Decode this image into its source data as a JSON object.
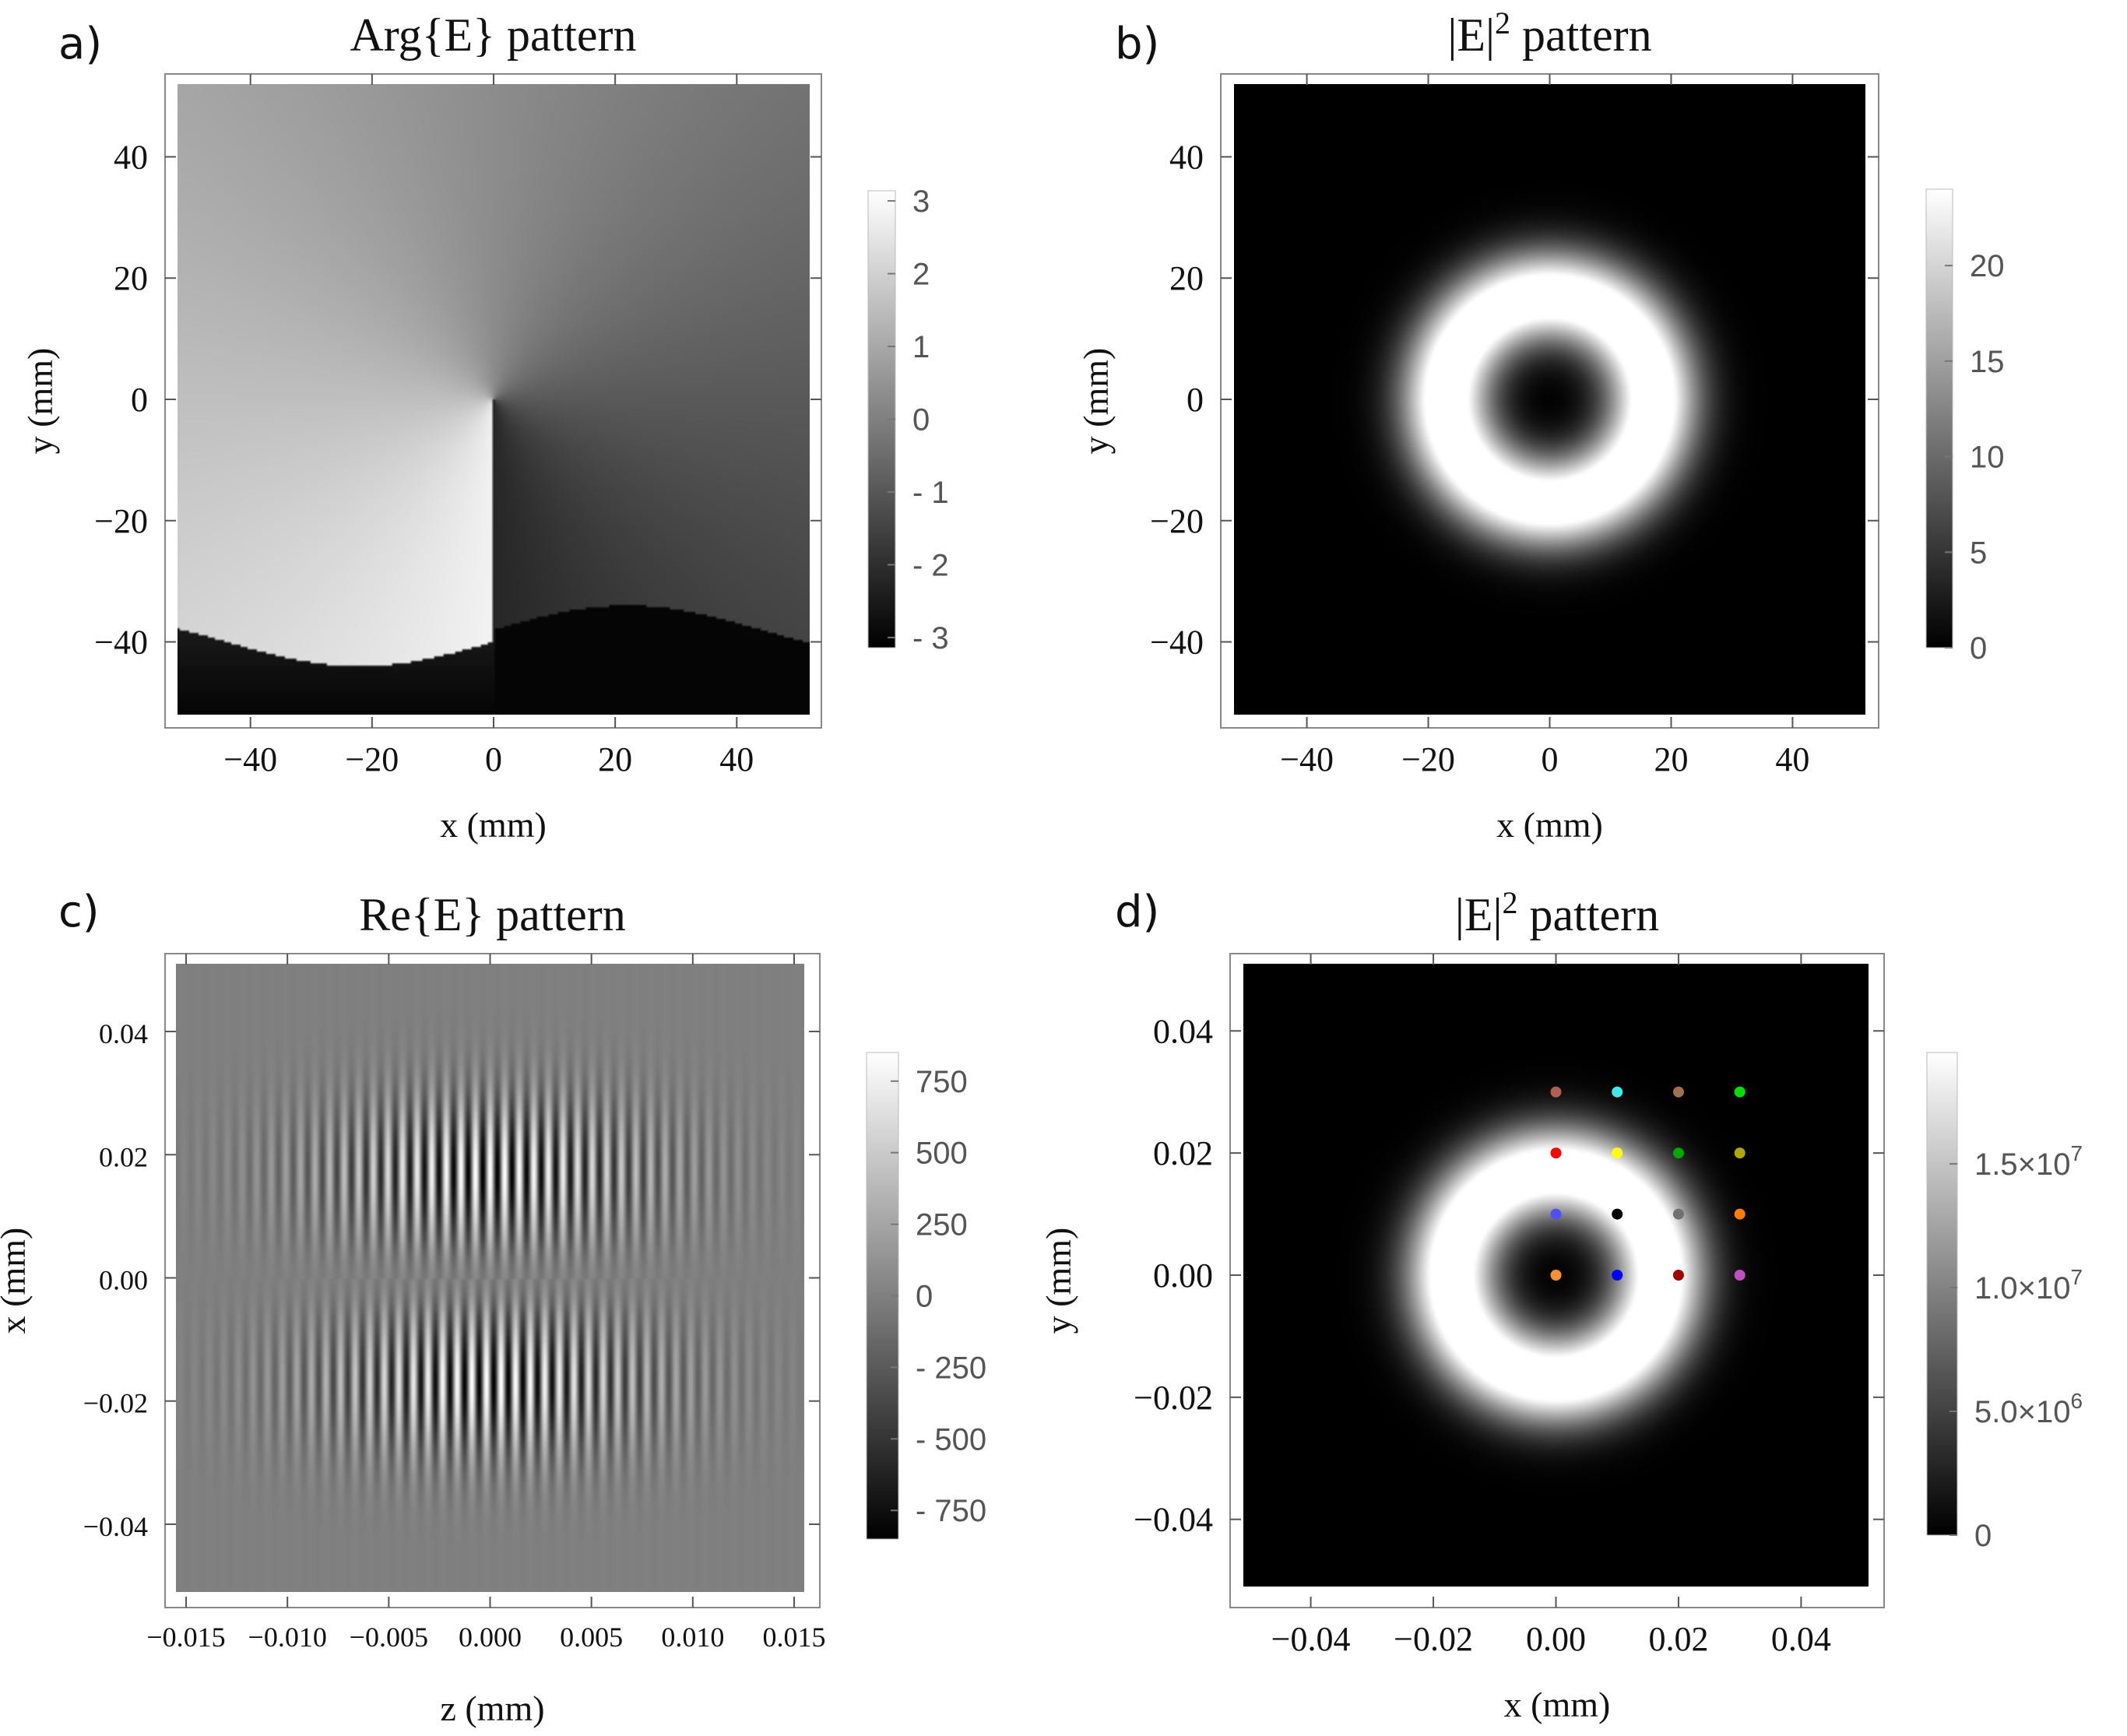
{
  "chart_data": [
    {
      "id": "a",
      "type": "heatmap",
      "panel_letter": "a)",
      "title": "Arg{E} pattern",
      "xlabel": "x (mm)",
      "ylabel": "y (mm)",
      "xlim": [
        -52,
        52
      ],
      "ylim": [
        -52,
        52
      ],
      "xticks": [
        {
          "v": -40,
          "t": "−40"
        },
        {
          "v": -20,
          "t": "−20"
        },
        {
          "v": 0,
          "t": "0"
        },
        {
          "v": 20,
          "t": "20"
        },
        {
          "v": 40,
          "t": "40"
        }
      ],
      "yticks": [
        {
          "v": 40,
          "t": "40"
        },
        {
          "v": 20,
          "t": "20"
        },
        {
          "v": 0,
          "t": "0"
        },
        {
          "v": -20,
          "t": "−20"
        },
        {
          "v": -40,
          "t": "−40"
        }
      ],
      "pattern": "phase",
      "colorbar": {
        "range": [
          -3.14,
          3.14
        ],
        "ticks": [
          {
            "v": 3,
            "t": "3"
          },
          {
            "v": 2,
            "t": "2"
          },
          {
            "v": 1,
            "t": "1"
          },
          {
            "v": 0,
            "t": "0"
          },
          {
            "v": -1,
            "t": "- 1"
          },
          {
            "v": -2,
            "t": "- 2"
          },
          {
            "v": -3,
            "t": "- 3"
          }
        ]
      }
    },
    {
      "id": "b",
      "type": "heatmap",
      "panel_letter": "b)",
      "title": "|E|",
      "title_sup": "2",
      "title_rest": " pattern",
      "xlabel": "x (mm)",
      "ylabel": "y (mm)",
      "xlim": [
        -52,
        52
      ],
      "ylim": [
        -52,
        52
      ],
      "xticks": [
        {
          "v": -40,
          "t": "−40"
        },
        {
          "v": -20,
          "t": "−20"
        },
        {
          "v": 0,
          "t": "0"
        },
        {
          "v": 20,
          "t": "20"
        },
        {
          "v": 40,
          "t": "40"
        }
      ],
      "yticks": [
        {
          "v": 40,
          "t": "40"
        },
        {
          "v": 20,
          "t": "20"
        },
        {
          "v": 0,
          "t": "0"
        },
        {
          "v": -20,
          "t": "−20"
        },
        {
          "v": -40,
          "t": "−40"
        }
      ],
      "pattern": "donut",
      "beam": {
        "cx": 0,
        "cy": 0,
        "ring_radius": 17,
        "width": 7.5,
        "peak": 24
      },
      "colorbar": {
        "range": [
          0,
          24
        ],
        "ticks": [
          {
            "v": 20,
            "t": "20"
          },
          {
            "v": 15,
            "t": "15"
          },
          {
            "v": 10,
            "t": "10"
          },
          {
            "v": 5,
            "t": "5"
          },
          {
            "v": 0,
            "t": "0"
          }
        ]
      }
    },
    {
      "id": "c",
      "type": "heatmap",
      "panel_letter": "c)",
      "title": "Re{E} pattern",
      "xlabel": "z (mm)",
      "ylabel": "x (mm)",
      "xlim": [
        -0.0155,
        0.0155
      ],
      "ylim": [
        -0.051,
        0.051
      ],
      "xticks": [
        {
          "v": -0.015,
          "t": "−0.015"
        },
        {
          "v": -0.01,
          "t": "−0.010"
        },
        {
          "v": -0.005,
          "t": "−0.005"
        },
        {
          "v": 0,
          "t": "0.000"
        },
        {
          "v": 0.005,
          "t": "0.005"
        },
        {
          "v": 0.01,
          "t": "0.010"
        },
        {
          "v": 0.015,
          "t": "0.015"
        }
      ],
      "yticks": [
        {
          "v": 0.04,
          "t": "0.04"
        },
        {
          "v": 0.02,
          "t": "0.02"
        },
        {
          "v": 0,
          "t": "0.00"
        },
        {
          "v": -0.02,
          "t": "−0.02"
        },
        {
          "v": -0.04,
          "t": "−0.04"
        }
      ],
      "pattern": "fringes",
      "colorbar": {
        "range": [
          -850,
          850
        ],
        "ticks": [
          {
            "v": 750,
            "t": "750"
          },
          {
            "v": 500,
            "t": "500"
          },
          {
            "v": 250,
            "t": "250"
          },
          {
            "v": 0,
            "t": "0"
          },
          {
            "v": -250,
            "t": "- 250"
          },
          {
            "v": -500,
            "t": "- 500"
          },
          {
            "v": -750,
            "t": "- 750"
          }
        ]
      }
    },
    {
      "id": "d",
      "type": "heatmap",
      "panel_letter": "d)",
      "title": "|E|",
      "title_sup": "2",
      "title_rest": " pattern",
      "xlabel": "x (mm)",
      "ylabel": "y (mm)",
      "xlim": [
        -0.051,
        0.051
      ],
      "ylim": [
        -0.051,
        0.051
      ],
      "xticks": [
        {
          "v": -0.04,
          "t": "−0.04"
        },
        {
          "v": -0.02,
          "t": "−0.02"
        },
        {
          "v": 0,
          "t": "0.00"
        },
        {
          "v": 0.02,
          "t": "0.02"
        },
        {
          "v": 0.04,
          "t": "0.04"
        }
      ],
      "yticks": [
        {
          "v": 0.04,
          "t": "0.04"
        },
        {
          "v": 0.02,
          "t": "0.02"
        },
        {
          "v": 0,
          "t": "0.00"
        },
        {
          "v": -0.02,
          "t": "−0.02"
        },
        {
          "v": -0.04,
          "t": "−0.04"
        }
      ],
      "pattern": "donut",
      "beam": {
        "cx": 0,
        "cy": 0,
        "ring_radius": 0.017,
        "width": 0.0075,
        "peak": 19500000
      },
      "colorbar": {
        "range": [
          0,
          19500000
        ],
        "ticks": [
          {
            "v": 15000000,
            "t": "1.5×10",
            "sup": "7"
          },
          {
            "v": 10000000,
            "t": "1.0×10",
            "sup": "7"
          },
          {
            "v": 5000000,
            "t": "5.0×10",
            "sup": "6"
          },
          {
            "v": 0,
            "t": "0"
          }
        ]
      },
      "points": [
        {
          "x": 0.0,
          "y": 0.03,
          "color": "#b06050"
        },
        {
          "x": 0.01,
          "y": 0.03,
          "color": "#40e8e8"
        },
        {
          "x": 0.02,
          "y": 0.03,
          "color": "#a07050"
        },
        {
          "x": 0.03,
          "y": 0.03,
          "color": "#00e000"
        },
        {
          "x": 0.0,
          "y": 0.02,
          "color": "#ff0000"
        },
        {
          "x": 0.01,
          "y": 0.02,
          "color": "#ffff00"
        },
        {
          "x": 0.02,
          "y": 0.02,
          "color": "#00a800"
        },
        {
          "x": 0.03,
          "y": 0.02,
          "color": "#b0a800"
        },
        {
          "x": 0.0,
          "y": 0.01,
          "color": "#5050f0"
        },
        {
          "x": 0.01,
          "y": 0.01,
          "color": "#000000"
        },
        {
          "x": 0.02,
          "y": 0.01,
          "color": "#707070"
        },
        {
          "x": 0.03,
          "y": 0.01,
          "color": "#ff8000"
        },
        {
          "x": 0.0,
          "y": 0.0,
          "color": "#ff9030"
        },
        {
          "x": 0.01,
          "y": 0.0,
          "color": "#0000ff"
        },
        {
          "x": 0.02,
          "y": 0.0,
          "color": "#a00000"
        },
        {
          "x": 0.03,
          "y": 0.0,
          "color": "#c050c0"
        }
      ]
    }
  ]
}
